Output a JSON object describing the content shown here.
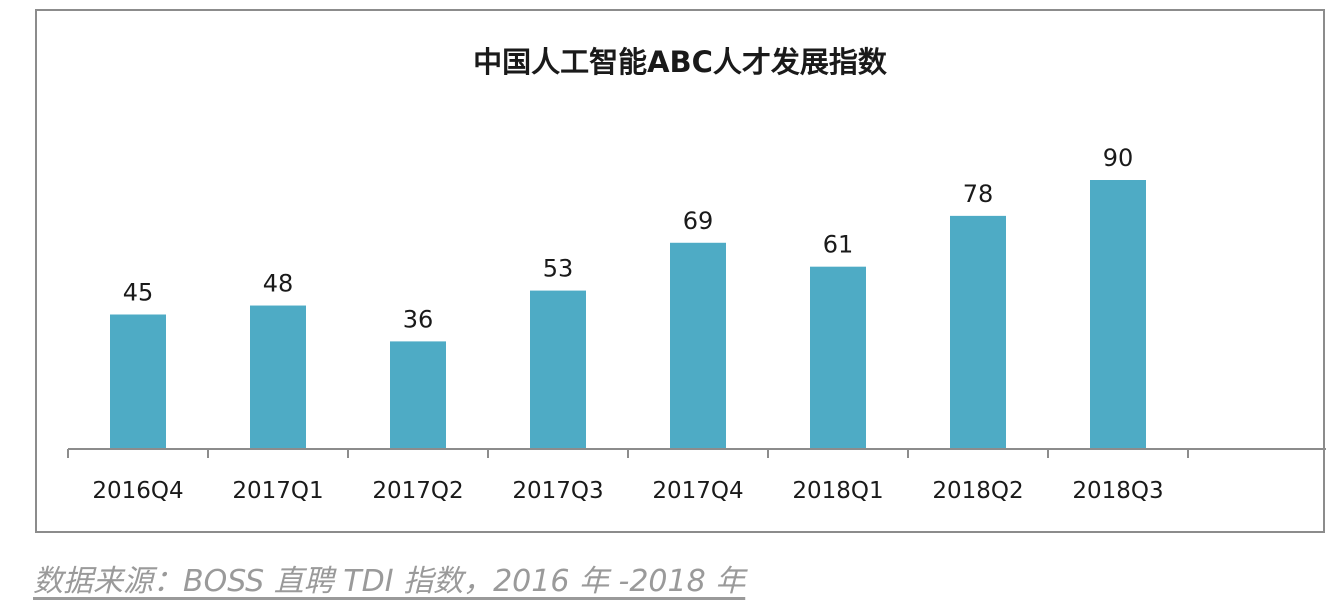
{
  "chart_data": {
    "type": "bar",
    "title": "中国人工智能ABC人才发展指数",
    "categories": [
      "2016Q4",
      "2017Q1",
      "2017Q2",
      "2017Q3",
      "2017Q4",
      "2018Q1",
      "2018Q2",
      "2018Q3"
    ],
    "values": [
      45,
      48,
      36,
      53,
      69,
      61,
      78,
      90
    ],
    "xlabel": "",
    "ylabel": "",
    "ylim": [
      0,
      90
    ],
    "grid": false,
    "legend": "none",
    "bar_color": "#4eabc5",
    "data_labels": true
  },
  "source_note": "数据来源：BOSS 直聘 TDI 指数，2016 年 -2018 年"
}
